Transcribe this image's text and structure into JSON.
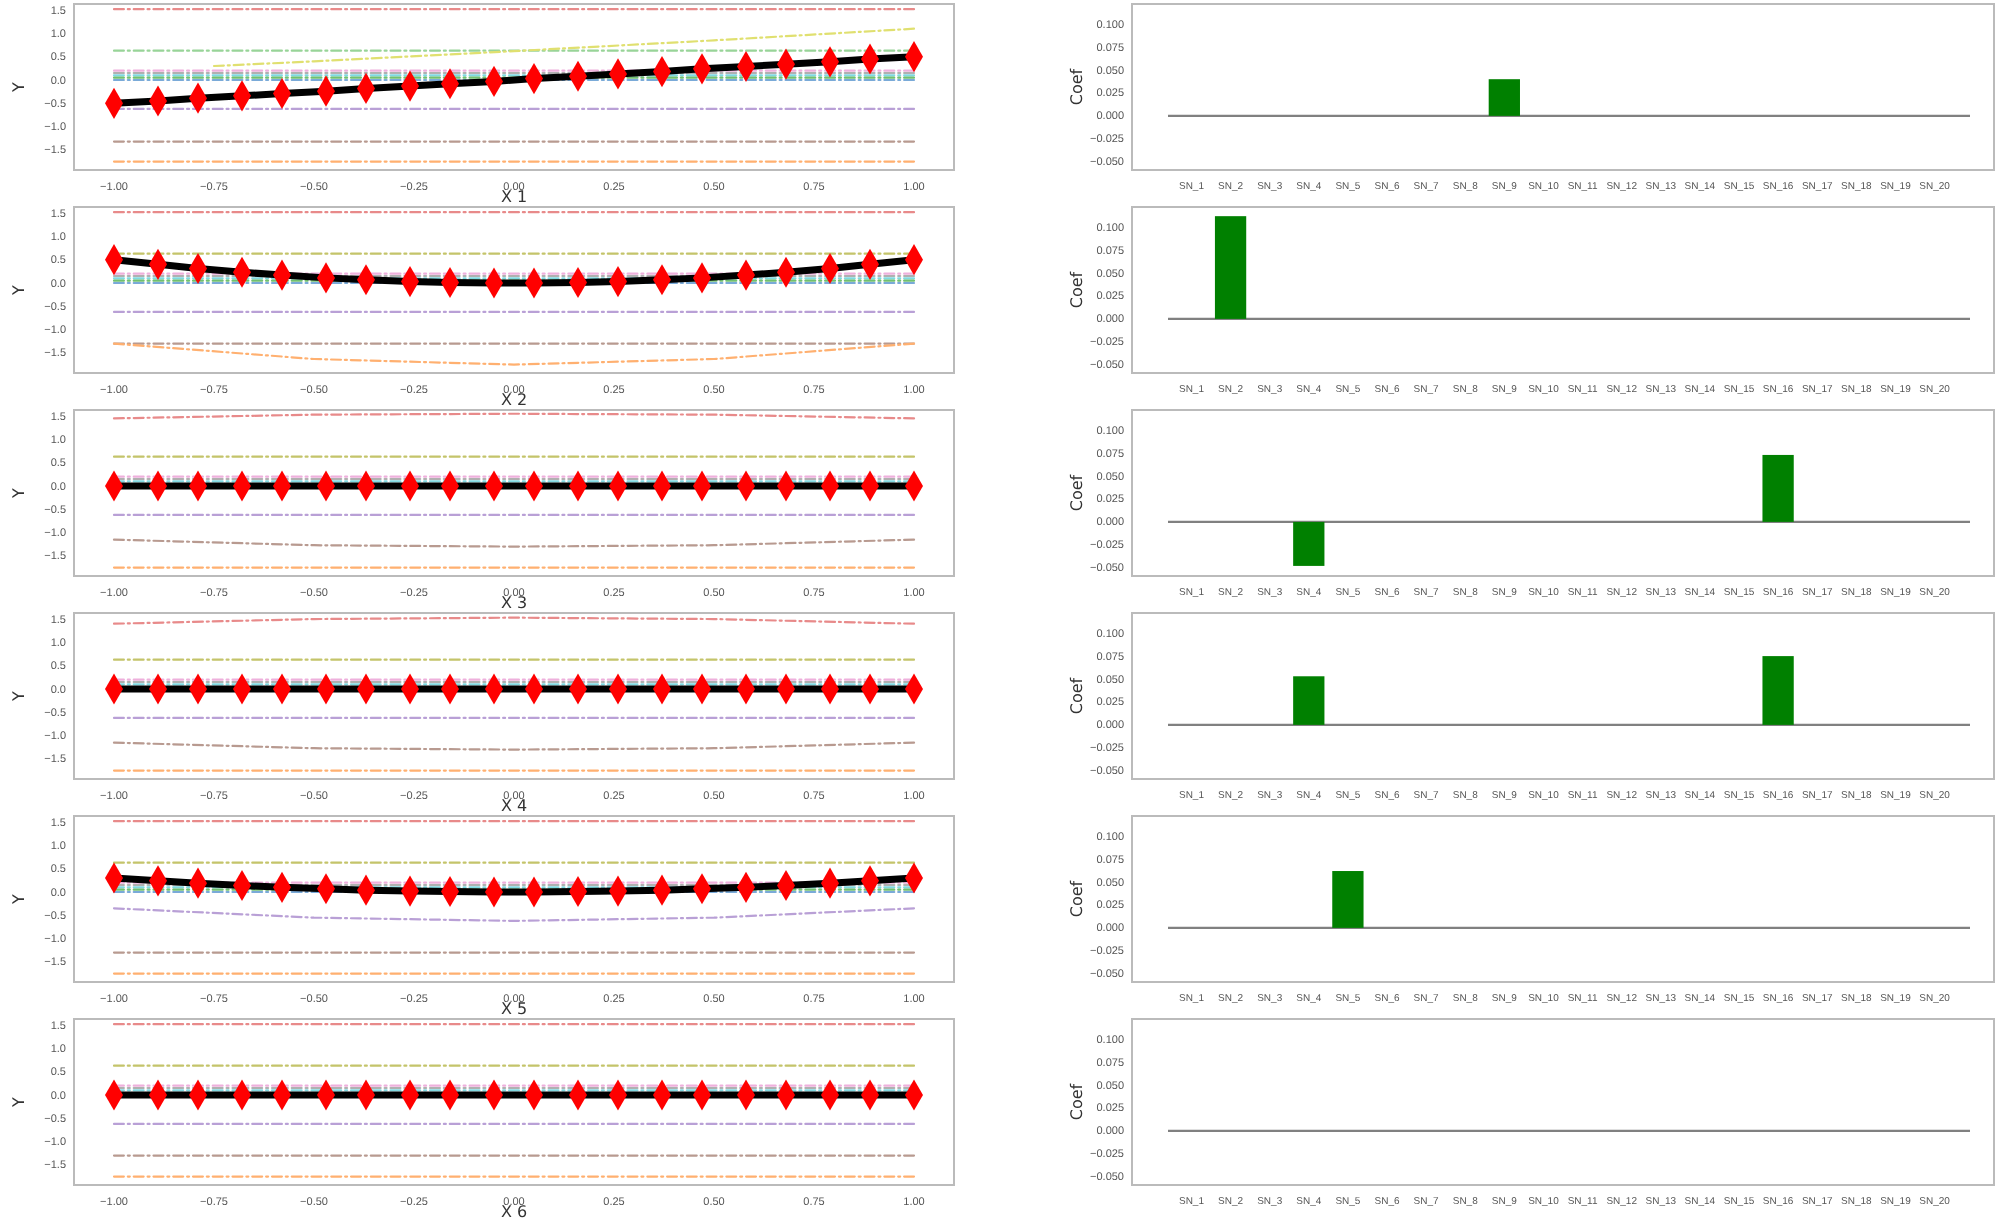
{
  "chart_data": [
    {
      "type": "line",
      "xlabel": "X 1",
      "ylabel": "Y",
      "xlim": [
        -1.1,
        1.1
      ],
      "ylim": [
        -1.93,
        1.63
      ],
      "xticks": [
        {
          "value": -1,
          "label": "−1.00"
        },
        {
          "value": -0.75,
          "label": "−0.75"
        },
        {
          "value": -0.5,
          "label": "−0.50"
        },
        {
          "value": -0.25,
          "label": "−0.25"
        },
        {
          "value": 0,
          "label": "0.00"
        },
        {
          "value": 0.25,
          "label": "0.25"
        },
        {
          "value": 0.5,
          "label": "0.50"
        },
        {
          "value": 0.75,
          "label": "0.75"
        },
        {
          "value": 1,
          "label": "1.00"
        }
      ],
      "yticks": [
        {
          "value": -1.5,
          "label": "−1.5"
        },
        {
          "value": -1,
          "label": "−1.0"
        },
        {
          "value": -0.5,
          "label": "−0.5"
        },
        {
          "value": 0,
          "label": "0.0"
        },
        {
          "value": 0.5,
          "label": "0.5"
        },
        {
          "value": 1,
          "label": "1.0"
        },
        {
          "value": 1.5,
          "label": "1.5"
        }
      ],
      "x": [
        -1,
        -0.89,
        -0.79,
        -0.68,
        -0.58,
        -0.47,
        -0.37,
        -0.26,
        -0.16,
        -0.05,
        0.05,
        0.16,
        0.26,
        0.37,
        0.47,
        0.58,
        0.68,
        0.79,
        0.89,
        1
      ],
      "series": [
        {
          "color": "#e88a8a",
          "line_style": "dashed",
          "x": [
            -1,
            -0.5,
            0,
            0.5,
            1
          ],
          "values": [
            1.52,
            1.52,
            1.52,
            1.52,
            1.52
          ]
        },
        {
          "color": "#98d498",
          "line_style": "dashed",
          "x": [
            -1,
            -0.5,
            0,
            0.5,
            1
          ],
          "values": [
            0.63,
            0.63,
            0.63,
            0.63,
            0.63
          ]
        },
        {
          "color": "#eeb0dc",
          "line_style": "dashed",
          "x": [
            -1,
            -0.5,
            0,
            0.5,
            1
          ],
          "values": [
            0.2,
            0.2,
            0.2,
            0.2,
            0.2
          ]
        },
        {
          "color": "#e0e070",
          "line_style": "dashed",
          "x": [
            -0.75,
            -0.5,
            0,
            0.5,
            1
          ],
          "values": [
            0.3,
            0.4,
            0.62,
            0.85,
            1.1
          ]
        },
        {
          "color": "#b0b0b0",
          "line_style": "dashed",
          "x": [
            -1,
            -0.5,
            0,
            0.5,
            1
          ],
          "values": [
            0.15,
            0.15,
            0.15,
            0.15,
            0.15
          ]
        },
        {
          "color": "#80d8e0",
          "line_style": "dashed",
          "x": [
            -1,
            -0.5,
            0,
            0.5,
            1
          ],
          "values": [
            0.1,
            0.1,
            0.1,
            0.1,
            0.1
          ]
        },
        {
          "color": "#70c070",
          "line_style": "dashed",
          "x": [
            -1,
            -0.5,
            0,
            0.5,
            1
          ],
          "values": [
            0.05,
            0.05,
            0.05,
            0.05,
            0.05
          ]
        },
        {
          "color": "#7aaad8",
          "line_style": "dashed",
          "x": [
            -1,
            -0.5,
            0,
            0.5,
            1
          ],
          "values": [
            0,
            0,
            0,
            0,
            0
          ]
        },
        {
          "color": "#b9a0d6",
          "line_style": "dashed",
          "x": [
            -1,
            -0.5,
            0,
            0.5,
            1
          ],
          "values": [
            -0.62,
            -0.62,
            -0.62,
            -0.62,
            -0.62
          ]
        },
        {
          "color": "#b89a90",
          "line_style": "dashed",
          "x": [
            -1,
            -0.5,
            0,
            0.5,
            1
          ],
          "values": [
            -1.32,
            -1.32,
            -1.32,
            -1.32,
            -1.32
          ]
        },
        {
          "color": "#ffb070",
          "line_style": "dashed",
          "x": [
            -1,
            -0.5,
            0,
            0.5,
            1
          ],
          "values": [
            -1.75,
            -1.75,
            -1.75,
            -1.75,
            -1.75
          ]
        },
        {
          "color": "#000000",
          "line_style": "solid",
          "marker": "diamond",
          "values": [
            -0.5,
            -0.45,
            -0.39,
            -0.34,
            -0.29,
            -0.24,
            -0.18,
            -0.13,
            -0.08,
            -0.03,
            0.03,
            0.08,
            0.13,
            0.18,
            0.24,
            0.29,
            0.34,
            0.39,
            0.45,
            0.5
          ]
        }
      ]
    },
    {
      "type": "bar",
      "ylabel": "Coef",
      "ylim": [
        -0.059,
        0.122
      ],
      "yticks": [
        {
          "value": -0.05,
          "label": "−0.050"
        },
        {
          "value": -0.025,
          "label": "−0.025"
        },
        {
          "value": 0,
          "label": "0.000"
        },
        {
          "value": 0.025,
          "label": "0.025"
        },
        {
          "value": 0.05,
          "label": "0.050"
        },
        {
          "value": 0.075,
          "label": "0.075"
        },
        {
          "value": 0.1,
          "label": "0.100"
        }
      ],
      "categories": [
        "SN_1",
        "SN_2",
        "SN_3",
        "SN_4",
        "SN_5",
        "SN_6",
        "SN_7",
        "SN_8",
        "SN_9",
        "SN_10",
        "SN_11",
        "SN_12",
        "SN_13",
        "SN_14",
        "SN_15",
        "SN_16",
        "SN_17",
        "SN_18",
        "SN_19",
        "SN_20"
      ],
      "color": "#008000",
      "values": [
        0,
        0,
        0,
        0,
        0,
        0,
        0,
        0,
        0.04,
        0,
        0,
        0,
        0,
        0,
        0,
        0,
        0,
        0,
        0,
        0
      ],
      "ref_lines": [
        {
          "axis": "y",
          "value": 0,
          "color": "#808080"
        }
      ]
    },
    {
      "type": "line",
      "xlabel": "X 2",
      "ylabel": "Y",
      "xlim": [
        -1.1,
        1.1
      ],
      "ylim": [
        -1.93,
        1.63
      ],
      "xticks": [
        {
          "value": -1,
          "label": "−1.00"
        },
        {
          "value": -0.75,
          "label": "−0.75"
        },
        {
          "value": -0.5,
          "label": "−0.50"
        },
        {
          "value": -0.25,
          "label": "−0.25"
        },
        {
          "value": 0,
          "label": "0.00"
        },
        {
          "value": 0.25,
          "label": "0.25"
        },
        {
          "value": 0.5,
          "label": "0.50"
        },
        {
          "value": 0.75,
          "label": "0.75"
        },
        {
          "value": 1,
          "label": "1.00"
        }
      ],
      "yticks": [
        {
          "value": -1.5,
          "label": "−1.5"
        },
        {
          "value": -1,
          "label": "−1.0"
        },
        {
          "value": -0.5,
          "label": "−0.5"
        },
        {
          "value": 0,
          "label": "0.0"
        },
        {
          "value": 0.5,
          "label": "0.5"
        },
        {
          "value": 1,
          "label": "1.0"
        },
        {
          "value": 1.5,
          "label": "1.5"
        }
      ],
      "x": [
        -1,
        -0.89,
        -0.79,
        -0.68,
        -0.58,
        -0.47,
        -0.37,
        -0.26,
        -0.16,
        -0.05,
        0.05,
        0.16,
        0.26,
        0.37,
        0.47,
        0.58,
        0.68,
        0.79,
        0.89,
        1
      ],
      "series": [
        {
          "color": "#e88a8a",
          "line_style": "dashed",
          "x": [
            -1,
            -0.5,
            0,
            0.5,
            1
          ],
          "values": [
            1.52,
            1.52,
            1.52,
            1.52,
            1.52
          ]
        },
        {
          "color": "#c4c46a",
          "line_style": "dashed",
          "x": [
            -1,
            -0.5,
            0,
            0.5,
            1
          ],
          "values": [
            0.63,
            0.63,
            0.63,
            0.63,
            0.63
          ]
        },
        {
          "color": "#eeb0dc",
          "line_style": "dashed",
          "x": [
            -1,
            -0.5,
            0,
            0.5,
            1
          ],
          "values": [
            0.2,
            0.2,
            0.2,
            0.2,
            0.2
          ]
        },
        {
          "color": "#b0b0b0",
          "line_style": "dashed",
          "x": [
            -1,
            -0.5,
            0,
            0.5,
            1
          ],
          "values": [
            0.15,
            0.15,
            0.15,
            0.15,
            0.15
          ]
        },
        {
          "color": "#80d8e0",
          "line_style": "dashed",
          "x": [
            -1,
            -0.5,
            0,
            0.5,
            1
          ],
          "values": [
            0.1,
            0.1,
            0.1,
            0.1,
            0.1
          ]
        },
        {
          "color": "#70c070",
          "line_style": "dashed",
          "x": [
            -1,
            -0.5,
            0,
            0.5,
            1
          ],
          "values": [
            0.05,
            0.05,
            0.05,
            0.05,
            0.05
          ]
        },
        {
          "color": "#7aaad8",
          "line_style": "dashed",
          "x": [
            -1,
            -0.5,
            0,
            0.5,
            1
          ],
          "values": [
            0,
            0,
            0,
            0,
            0
          ]
        },
        {
          "color": "#b9a0d6",
          "line_style": "dashed",
          "x": [
            -1,
            -0.5,
            0,
            0.5,
            1
          ],
          "values": [
            -0.62,
            -0.62,
            -0.62,
            -0.62,
            -0.62
          ]
        },
        {
          "color": "#b89a90",
          "line_style": "dashed",
          "x": [
            -1,
            -0.5,
            0,
            0.5,
            1
          ],
          "values": [
            -1.3,
            -1.3,
            -1.3,
            -1.3,
            -1.3
          ]
        },
        {
          "color": "#ffb070",
          "line_style": "dashed",
          "x": [
            -1,
            -0.5,
            0,
            0.5,
            1
          ],
          "values": [
            -1.3,
            -1.63,
            -1.75,
            -1.63,
            -1.3
          ]
        },
        {
          "color": "#000000",
          "line_style": "solid",
          "marker": "diamond",
          "values": [
            0.5,
            0.4,
            0.31,
            0.23,
            0.17,
            0.11,
            0.07,
            0.03,
            0.01,
            0,
            0,
            0.01,
            0.03,
            0.07,
            0.11,
            0.17,
            0.23,
            0.31,
            0.4,
            0.5
          ]
        }
      ]
    },
    {
      "type": "bar",
      "ylabel": "Coef",
      "ylim": [
        -0.059,
        0.122
      ],
      "yticks": [
        {
          "value": -0.05,
          "label": "−0.050"
        },
        {
          "value": -0.025,
          "label": "−0.025"
        },
        {
          "value": 0,
          "label": "0.000"
        },
        {
          "value": 0.025,
          "label": "0.025"
        },
        {
          "value": 0.05,
          "label": "0.050"
        },
        {
          "value": 0.075,
          "label": "0.075"
        },
        {
          "value": 0.1,
          "label": "0.100"
        }
      ],
      "categories": [
        "SN_1",
        "SN_2",
        "SN_3",
        "SN_4",
        "SN_5",
        "SN_6",
        "SN_7",
        "SN_8",
        "SN_9",
        "SN_10",
        "SN_11",
        "SN_12",
        "SN_13",
        "SN_14",
        "SN_15",
        "SN_16",
        "SN_17",
        "SN_18",
        "SN_19",
        "SN_20"
      ],
      "color": "#008000",
      "values": [
        0,
        0.112,
        0,
        0,
        0,
        0,
        0,
        0,
        0,
        0,
        0,
        0,
        0,
        0,
        0,
        0,
        0,
        0,
        0,
        0
      ],
      "ref_lines": [
        {
          "axis": "y",
          "value": 0,
          "color": "#808080"
        }
      ]
    },
    {
      "type": "line",
      "xlabel": "X 3",
      "ylabel": "Y",
      "xlim": [
        -1.1,
        1.1
      ],
      "ylim": [
        -1.93,
        1.63
      ],
      "xticks": [
        {
          "value": -1,
          "label": "−1.00"
        },
        {
          "value": -0.75,
          "label": "−0.75"
        },
        {
          "value": -0.5,
          "label": "−0.50"
        },
        {
          "value": -0.25,
          "label": "−0.25"
        },
        {
          "value": 0,
          "label": "0.00"
        },
        {
          "value": 0.25,
          "label": "0.25"
        },
        {
          "value": 0.5,
          "label": "0.50"
        },
        {
          "value": 0.75,
          "label": "0.75"
        },
        {
          "value": 1,
          "label": "1.00"
        }
      ],
      "yticks": [
        {
          "value": -1.5,
          "label": "−1.5"
        },
        {
          "value": -1,
          "label": "−1.0"
        },
        {
          "value": -0.5,
          "label": "−0.5"
        },
        {
          "value": 0,
          "label": "0.0"
        },
        {
          "value": 0.5,
          "label": "0.5"
        },
        {
          "value": 1,
          "label": "1.0"
        },
        {
          "value": 1.5,
          "label": "1.5"
        }
      ],
      "x": [
        -1,
        -0.89,
        -0.79,
        -0.68,
        -0.58,
        -0.47,
        -0.37,
        -0.26,
        -0.16,
        -0.05,
        0.05,
        0.16,
        0.26,
        0.37,
        0.47,
        0.58,
        0.68,
        0.79,
        0.89,
        1
      ],
      "series": [
        {
          "color": "#e88a8a",
          "line_style": "dashed",
          "x": [
            -1,
            -0.5,
            0,
            0.5,
            1
          ],
          "values": [
            1.45,
            1.53,
            1.55,
            1.53,
            1.45
          ]
        },
        {
          "color": "#c4c46a",
          "line_style": "dashed",
          "x": [
            -1,
            -0.5,
            0,
            0.5,
            1
          ],
          "values": [
            0.63,
            0.63,
            0.63,
            0.63,
            0.63
          ]
        },
        {
          "color": "#eeb0dc",
          "line_style": "dashed",
          "x": [
            -1,
            -0.5,
            0,
            0.5,
            1
          ],
          "values": [
            0.2,
            0.2,
            0.2,
            0.2,
            0.2
          ]
        },
        {
          "color": "#b0b0b0",
          "line_style": "dashed",
          "x": [
            -1,
            -0.5,
            0,
            0.5,
            1
          ],
          "values": [
            0.15,
            0.15,
            0.15,
            0.15,
            0.15
          ]
        },
        {
          "color": "#80d8e0",
          "line_style": "dashed",
          "x": [
            -1,
            -0.5,
            0,
            0.5,
            1
          ],
          "values": [
            0.1,
            0.1,
            0.1,
            0.1,
            0.1
          ]
        },
        {
          "color": "#b9a0d6",
          "line_style": "dashed",
          "x": [
            -1,
            -0.5,
            0,
            0.5,
            1
          ],
          "values": [
            -0.62,
            -0.62,
            -0.62,
            -0.62,
            -0.62
          ]
        },
        {
          "color": "#b89a90",
          "line_style": "dashed",
          "x": [
            -1,
            -0.5,
            0,
            0.5,
            1
          ],
          "values": [
            -1.15,
            -1.27,
            -1.3,
            -1.27,
            -1.15
          ]
        },
        {
          "color": "#ffb070",
          "line_style": "dashed",
          "x": [
            -1,
            -0.5,
            0,
            0.5,
            1
          ],
          "values": [
            -1.75,
            -1.75,
            -1.75,
            -1.75,
            -1.75
          ]
        },
        {
          "color": "#000000",
          "line_style": "solid",
          "marker": "diamond",
          "values": [
            0,
            0,
            0,
            0,
            0,
            0,
            0,
            0,
            0,
            0,
            0,
            0,
            0,
            0,
            0,
            0,
            0,
            0,
            0,
            0
          ]
        }
      ]
    },
    {
      "type": "bar",
      "ylabel": "Coef",
      "ylim": [
        -0.059,
        0.122
      ],
      "yticks": [
        {
          "value": -0.05,
          "label": "−0.050"
        },
        {
          "value": -0.025,
          "label": "−0.025"
        },
        {
          "value": 0,
          "label": "0.000"
        },
        {
          "value": 0.025,
          "label": "0.025"
        },
        {
          "value": 0.05,
          "label": "0.050"
        },
        {
          "value": 0.075,
          "label": "0.075"
        },
        {
          "value": 0.1,
          "label": "0.100"
        }
      ],
      "categories": [
        "SN_1",
        "SN_2",
        "SN_3",
        "SN_4",
        "SN_5",
        "SN_6",
        "SN_7",
        "SN_8",
        "SN_9",
        "SN_10",
        "SN_11",
        "SN_12",
        "SN_13",
        "SN_14",
        "SN_15",
        "SN_16",
        "SN_17",
        "SN_18",
        "SN_19",
        "SN_20"
      ],
      "color": "#008000",
      "values": [
        0,
        0,
        0,
        -0.048,
        0,
        0,
        0,
        0,
        0,
        0,
        0,
        0,
        0,
        0,
        0,
        0.073,
        0,
        0,
        0,
        0
      ],
      "ref_lines": [
        {
          "axis": "y",
          "value": 0,
          "color": "#808080"
        }
      ]
    },
    {
      "type": "line",
      "xlabel": "X 4",
      "ylabel": "Y",
      "xlim": [
        -1.1,
        1.1
      ],
      "ylim": [
        -1.93,
        1.63
      ],
      "xticks": [
        {
          "value": -1,
          "label": "−1.00"
        },
        {
          "value": -0.75,
          "label": "−0.75"
        },
        {
          "value": -0.5,
          "label": "−0.50"
        },
        {
          "value": -0.25,
          "label": "−0.25"
        },
        {
          "value": 0,
          "label": "0.00"
        },
        {
          "value": 0.25,
          "label": "0.25"
        },
        {
          "value": 0.5,
          "label": "0.50"
        },
        {
          "value": 0.75,
          "label": "0.75"
        },
        {
          "value": 1,
          "label": "1.00"
        }
      ],
      "yticks": [
        {
          "value": -1.5,
          "label": "−1.5"
        },
        {
          "value": -1,
          "label": "−1.0"
        },
        {
          "value": -0.5,
          "label": "−0.5"
        },
        {
          "value": 0,
          "label": "0.0"
        },
        {
          "value": 0.5,
          "label": "0.5"
        },
        {
          "value": 1,
          "label": "1.0"
        },
        {
          "value": 1.5,
          "label": "1.5"
        }
      ],
      "x": [
        -1,
        -0.89,
        -0.79,
        -0.68,
        -0.58,
        -0.47,
        -0.37,
        -0.26,
        -0.16,
        -0.05,
        0.05,
        0.16,
        0.26,
        0.37,
        0.47,
        0.58,
        0.68,
        0.79,
        0.89,
        1
      ],
      "series": [
        {
          "color": "#e88a8a",
          "line_style": "dashed",
          "x": [
            -1,
            -0.5,
            0,
            0.5,
            1
          ],
          "values": [
            1.4,
            1.5,
            1.53,
            1.5,
            1.4
          ]
        },
        {
          "color": "#c4c46a",
          "line_style": "dashed",
          "x": [
            -1,
            -0.5,
            0,
            0.5,
            1
          ],
          "values": [
            0.63,
            0.63,
            0.63,
            0.63,
            0.63
          ]
        },
        {
          "color": "#eeb0dc",
          "line_style": "dashed",
          "x": [
            -1,
            -0.5,
            0,
            0.5,
            1
          ],
          "values": [
            0.2,
            0.2,
            0.2,
            0.2,
            0.2
          ]
        },
        {
          "color": "#b0b0b0",
          "line_style": "dashed",
          "x": [
            -1,
            -0.5,
            0,
            0.5,
            1
          ],
          "values": [
            0.15,
            0.15,
            0.15,
            0.15,
            0.15
          ]
        },
        {
          "color": "#80d8e0",
          "line_style": "dashed",
          "x": [
            -1,
            -0.5,
            0,
            0.5,
            1
          ],
          "values": [
            0.1,
            0.1,
            0.1,
            0.1,
            0.1
          ]
        },
        {
          "color": "#b9a0d6",
          "line_style": "dashed",
          "x": [
            -1,
            -0.5,
            0,
            0.5,
            1
          ],
          "values": [
            -0.62,
            -0.62,
            -0.62,
            -0.62,
            -0.62
          ]
        },
        {
          "color": "#b89a90",
          "line_style": "dashed",
          "x": [
            -1,
            -0.5,
            0,
            0.5,
            1
          ],
          "values": [
            -1.15,
            -1.27,
            -1.3,
            -1.27,
            -1.15
          ]
        },
        {
          "color": "#ffb070",
          "line_style": "dashed",
          "x": [
            -1,
            -0.5,
            0,
            0.5,
            1
          ],
          "values": [
            -1.75,
            -1.75,
            -1.75,
            -1.75,
            -1.75
          ]
        },
        {
          "color": "#000000",
          "line_style": "solid",
          "marker": "diamond",
          "values": [
            0,
            0,
            0,
            0,
            0,
            0,
            0,
            0,
            0,
            0,
            0,
            0,
            0,
            0,
            0,
            0,
            0,
            0,
            0,
            0
          ]
        }
      ]
    },
    {
      "type": "bar",
      "ylabel": "Coef",
      "ylim": [
        -0.059,
        0.122
      ],
      "yticks": [
        {
          "value": -0.05,
          "label": "−0.050"
        },
        {
          "value": -0.025,
          "label": "−0.025"
        },
        {
          "value": 0,
          "label": "0.000"
        },
        {
          "value": 0.025,
          "label": "0.025"
        },
        {
          "value": 0.05,
          "label": "0.050"
        },
        {
          "value": 0.075,
          "label": "0.075"
        },
        {
          "value": 0.1,
          "label": "0.100"
        }
      ],
      "categories": [
        "SN_1",
        "SN_2",
        "SN_3",
        "SN_4",
        "SN_5",
        "SN_6",
        "SN_7",
        "SN_8",
        "SN_9",
        "SN_10",
        "SN_11",
        "SN_12",
        "SN_13",
        "SN_14",
        "SN_15",
        "SN_16",
        "SN_17",
        "SN_18",
        "SN_19",
        "SN_20"
      ],
      "color": "#008000",
      "values": [
        0,
        0,
        0,
        0.053,
        0,
        0,
        0,
        0,
        0,
        0,
        0,
        0,
        0,
        0,
        0,
        0.075,
        0,
        0,
        0,
        0
      ],
      "ref_lines": [
        {
          "axis": "y",
          "value": 0,
          "color": "#808080"
        }
      ]
    },
    {
      "type": "line",
      "xlabel": "X 5",
      "ylabel": "Y",
      "xlim": [
        -1.1,
        1.1
      ],
      "ylim": [
        -1.93,
        1.63
      ],
      "xticks": [
        {
          "value": -1,
          "label": "−1.00"
        },
        {
          "value": -0.75,
          "label": "−0.75"
        },
        {
          "value": -0.5,
          "label": "−0.50"
        },
        {
          "value": -0.25,
          "label": "−0.25"
        },
        {
          "value": 0,
          "label": "0.00"
        },
        {
          "value": 0.25,
          "label": "0.25"
        },
        {
          "value": 0.5,
          "label": "0.50"
        },
        {
          "value": 0.75,
          "label": "0.75"
        },
        {
          "value": 1,
          "label": "1.00"
        }
      ],
      "yticks": [
        {
          "value": -1.5,
          "label": "−1.5"
        },
        {
          "value": -1,
          "label": "−1.0"
        },
        {
          "value": -0.5,
          "label": "−0.5"
        },
        {
          "value": 0,
          "label": "0.0"
        },
        {
          "value": 0.5,
          "label": "0.5"
        },
        {
          "value": 1,
          "label": "1.0"
        },
        {
          "value": 1.5,
          "label": "1.5"
        }
      ],
      "x": [
        -1,
        -0.89,
        -0.79,
        -0.68,
        -0.58,
        -0.47,
        -0.37,
        -0.26,
        -0.16,
        -0.05,
        0.05,
        0.16,
        0.26,
        0.37,
        0.47,
        0.58,
        0.68,
        0.79,
        0.89,
        1
      ],
      "series": [
        {
          "color": "#e88a8a",
          "line_style": "dashed",
          "x": [
            -1,
            -0.5,
            0,
            0.5,
            1
          ],
          "values": [
            1.52,
            1.52,
            1.52,
            1.52,
            1.52
          ]
        },
        {
          "color": "#c4c46a",
          "line_style": "dashed",
          "x": [
            -1,
            -0.5,
            0,
            0.5,
            1
          ],
          "values": [
            0.63,
            0.63,
            0.63,
            0.63,
            0.63
          ]
        },
        {
          "color": "#eeb0dc",
          "line_style": "dashed",
          "x": [
            -1,
            -0.5,
            0,
            0.5,
            1
          ],
          "values": [
            0.2,
            0.2,
            0.2,
            0.2,
            0.2
          ]
        },
        {
          "color": "#b0b0b0",
          "line_style": "dashed",
          "x": [
            -1,
            -0.5,
            0,
            0.5,
            1
          ],
          "values": [
            0.15,
            0.15,
            0.15,
            0.15,
            0.15
          ]
        },
        {
          "color": "#80d8e0",
          "line_style": "dashed",
          "x": [
            -1,
            -0.5,
            0,
            0.5,
            1
          ],
          "values": [
            0.1,
            0.1,
            0.1,
            0.1,
            0.1
          ]
        },
        {
          "color": "#70c070",
          "line_style": "dashed",
          "x": [
            -1,
            -0.5,
            0,
            0.5,
            1
          ],
          "values": [
            0.05,
            0.05,
            0.05,
            0.05,
            0.05
          ]
        },
        {
          "color": "#7aaad8",
          "line_style": "dashed",
          "x": [
            -1,
            -0.5,
            0,
            0.5,
            1
          ],
          "values": [
            0,
            0,
            0,
            0,
            0
          ]
        },
        {
          "color": "#b9a0d6",
          "line_style": "dashed",
          "x": [
            -1,
            -0.5,
            0,
            0.5,
            1
          ],
          "values": [
            -0.35,
            -0.55,
            -0.62,
            -0.55,
            -0.35
          ]
        },
        {
          "color": "#b89a90",
          "line_style": "dashed",
          "x": [
            -1,
            -0.5,
            0,
            0.5,
            1
          ],
          "values": [
            -1.3,
            -1.3,
            -1.3,
            -1.3,
            -1.3
          ]
        },
        {
          "color": "#ffb070",
          "line_style": "dashed",
          "x": [
            -1,
            -0.5,
            0,
            0.5,
            1
          ],
          "values": [
            -1.75,
            -1.75,
            -1.75,
            -1.75,
            -1.75
          ]
        },
        {
          "color": "#000000",
          "line_style": "solid",
          "marker": "diamond",
          "values": [
            0.3,
            0.24,
            0.19,
            0.14,
            0.1,
            0.07,
            0.04,
            0.02,
            0.01,
            0,
            0,
            0.01,
            0.02,
            0.04,
            0.07,
            0.1,
            0.14,
            0.19,
            0.24,
            0.3
          ]
        }
      ]
    },
    {
      "type": "bar",
      "ylabel": "Coef",
      "ylim": [
        -0.059,
        0.122
      ],
      "yticks": [
        {
          "value": -0.05,
          "label": "−0.050"
        },
        {
          "value": -0.025,
          "label": "−0.025"
        },
        {
          "value": 0,
          "label": "0.000"
        },
        {
          "value": 0.025,
          "label": "0.025"
        },
        {
          "value": 0.05,
          "label": "0.050"
        },
        {
          "value": 0.075,
          "label": "0.075"
        },
        {
          "value": 0.1,
          "label": "0.100"
        }
      ],
      "categories": [
        "SN_1",
        "SN_2",
        "SN_3",
        "SN_4",
        "SN_5",
        "SN_6",
        "SN_7",
        "SN_8",
        "SN_9",
        "SN_10",
        "SN_11",
        "SN_12",
        "SN_13",
        "SN_14",
        "SN_15",
        "SN_16",
        "SN_17",
        "SN_18",
        "SN_19",
        "SN_20"
      ],
      "color": "#008000",
      "values": [
        0,
        0,
        0,
        0,
        0.062,
        0,
        0,
        0,
        0,
        0,
        0,
        0,
        0,
        0,
        0,
        0,
        0,
        0,
        0,
        0
      ],
      "ref_lines": [
        {
          "axis": "y",
          "value": 0,
          "color": "#808080"
        }
      ]
    },
    {
      "type": "line",
      "xlabel": "X 6",
      "ylabel": "Y",
      "xlim": [
        -1.1,
        1.1
      ],
      "ylim": [
        -1.93,
        1.63
      ],
      "xticks": [
        {
          "value": -1,
          "label": "−1.00"
        },
        {
          "value": -0.75,
          "label": "−0.75"
        },
        {
          "value": -0.5,
          "label": "−0.50"
        },
        {
          "value": -0.25,
          "label": "−0.25"
        },
        {
          "value": 0,
          "label": "0.00"
        },
        {
          "value": 0.25,
          "label": "0.25"
        },
        {
          "value": 0.5,
          "label": "0.50"
        },
        {
          "value": 0.75,
          "label": "0.75"
        },
        {
          "value": 1,
          "label": "1.00"
        }
      ],
      "yticks": [
        {
          "value": -1.5,
          "label": "−1.5"
        },
        {
          "value": -1,
          "label": "−1.0"
        },
        {
          "value": -0.5,
          "label": "−0.5"
        },
        {
          "value": 0,
          "label": "0.0"
        },
        {
          "value": 0.5,
          "label": "0.5"
        },
        {
          "value": 1,
          "label": "1.0"
        },
        {
          "value": 1.5,
          "label": "1.5"
        }
      ],
      "x": [
        -1,
        -0.89,
        -0.79,
        -0.68,
        -0.58,
        -0.47,
        -0.37,
        -0.26,
        -0.16,
        -0.05,
        0.05,
        0.16,
        0.26,
        0.37,
        0.47,
        0.58,
        0.68,
        0.79,
        0.89,
        1
      ],
      "series": [
        {
          "color": "#e88a8a",
          "line_style": "dashed",
          "x": [
            -1,
            -0.5,
            0,
            0.5,
            1
          ],
          "values": [
            1.52,
            1.52,
            1.52,
            1.52,
            1.52
          ]
        },
        {
          "color": "#c4c46a",
          "line_style": "dashed",
          "x": [
            -1,
            -0.5,
            0,
            0.5,
            1
          ],
          "values": [
            0.63,
            0.63,
            0.63,
            0.63,
            0.63
          ]
        },
        {
          "color": "#eeb0dc",
          "line_style": "dashed",
          "x": [
            -1,
            -0.5,
            0,
            0.5,
            1
          ],
          "values": [
            0.2,
            0.2,
            0.2,
            0.2,
            0.2
          ]
        },
        {
          "color": "#b0b0b0",
          "line_style": "dashed",
          "x": [
            -1,
            -0.5,
            0,
            0.5,
            1
          ],
          "values": [
            0.15,
            0.15,
            0.15,
            0.15,
            0.15
          ]
        },
        {
          "color": "#80d8e0",
          "line_style": "dashed",
          "x": [
            -1,
            -0.5,
            0,
            0.5,
            1
          ],
          "values": [
            0.1,
            0.1,
            0.1,
            0.1,
            0.1
          ]
        },
        {
          "color": "#b9a0d6",
          "line_style": "dashed",
          "x": [
            -1,
            -0.5,
            0,
            0.5,
            1
          ],
          "values": [
            -0.62,
            -0.62,
            -0.62,
            -0.62,
            -0.62
          ]
        },
        {
          "color": "#b89a90",
          "line_style": "dashed",
          "x": [
            -1,
            -0.5,
            0,
            0.5,
            1
          ],
          "values": [
            -1.3,
            -1.3,
            -1.3,
            -1.3,
            -1.3
          ]
        },
        {
          "color": "#ffb070",
          "line_style": "dashed",
          "x": [
            -1,
            -0.5,
            0,
            0.5,
            1
          ],
          "values": [
            -1.75,
            -1.75,
            -1.75,
            -1.75,
            -1.75
          ]
        },
        {
          "color": "#000000",
          "line_style": "solid",
          "marker": "diamond",
          "values": [
            0,
            0,
            0,
            0,
            0,
            0,
            0,
            0,
            0,
            0,
            0,
            0,
            0,
            0,
            0,
            0,
            0,
            0,
            0,
            0
          ]
        }
      ]
    },
    {
      "type": "bar",
      "ylabel": "Coef",
      "ylim": [
        -0.059,
        0.122
      ],
      "yticks": [
        {
          "value": -0.05,
          "label": "−0.050"
        },
        {
          "value": -0.025,
          "label": "−0.025"
        },
        {
          "value": 0,
          "label": "0.000"
        },
        {
          "value": 0.025,
          "label": "0.025"
        },
        {
          "value": 0.05,
          "label": "0.050"
        },
        {
          "value": 0.075,
          "label": "0.075"
        },
        {
          "value": 0.1,
          "label": "0.100"
        }
      ],
      "categories": [
        "SN_1",
        "SN_2",
        "SN_3",
        "SN_4",
        "SN_5",
        "SN_6",
        "SN_7",
        "SN_8",
        "SN_9",
        "SN_10",
        "SN_11",
        "SN_12",
        "SN_13",
        "SN_14",
        "SN_15",
        "SN_16",
        "SN_17",
        "SN_18",
        "SN_19",
        "SN_20"
      ],
      "color": "#008000",
      "values": [
        0,
        0,
        0,
        0,
        0,
        0,
        0,
        0,
        0,
        0,
        0,
        0,
        0,
        0,
        0,
        0,
        0,
        0,
        0,
        0
      ],
      "ref_lines": [
        {
          "axis": "y",
          "value": 0,
          "color": "#808080"
        }
      ]
    }
  ]
}
